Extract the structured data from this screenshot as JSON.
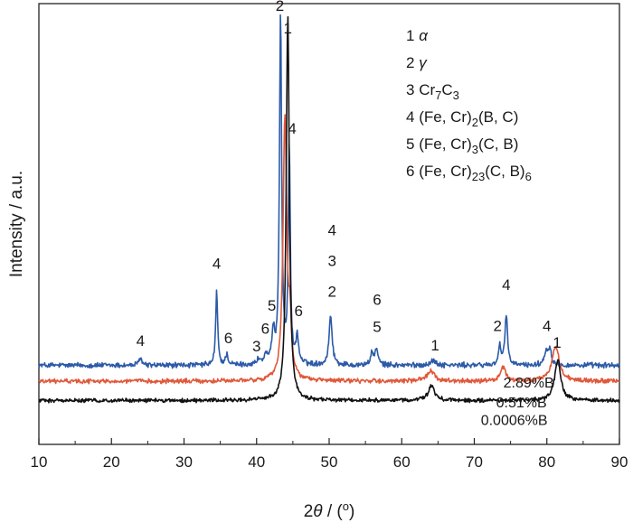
{
  "chart_data": {
    "type": "line",
    "xlabel_prefix": "2",
    "xlabel_symbol": "θ",
    "xlabel_suffix": " / (",
    "xlabel_degree": "o",
    "xlabel_close": ")",
    "ylabel": "Intensity / a.u.",
    "xlim": [
      10,
      90
    ],
    "x_ticks": [
      "10",
      "20",
      "30",
      "40",
      "50",
      "60",
      "70",
      "80",
      "90"
    ],
    "y_ticks_shown": false,
    "grid": false,
    "series": [
      {
        "name": "2.89%B",
        "color": "#2c5aa8",
        "baseline": 0.18,
        "noise": 0.025,
        "peaks": [
          {
            "x": 24.0,
            "h": 0.09,
            "w": 0.22
          },
          {
            "x": 34.5,
            "h": 0.85,
            "w": 0.16
          },
          {
            "x": 35.9,
            "h": 0.12,
            "w": 0.2
          },
          {
            "x": 40.3,
            "h": 0.06,
            "w": 0.25
          },
          {
            "x": 41.3,
            "h": 0.1,
            "w": 0.25
          },
          {
            "x": 42.3,
            "h": 0.34,
            "w": 0.22
          },
          {
            "x": 43.3,
            "h": 4.0,
            "w": 0.18
          },
          {
            "x": 44.5,
            "h": 2.48,
            "w": 0.16
          },
          {
            "x": 45.6,
            "h": 0.3,
            "w": 0.22
          },
          {
            "x": 50.2,
            "h": 0.57,
            "w": 0.25
          },
          {
            "x": 55.9,
            "h": 0.12,
            "w": 0.25
          },
          {
            "x": 56.5,
            "h": 0.18,
            "w": 0.25
          },
          {
            "x": 64.3,
            "h": 0.05,
            "w": 0.5
          },
          {
            "x": 73.5,
            "h": 0.22,
            "w": 0.2
          },
          {
            "x": 74.4,
            "h": 0.55,
            "w": 0.22
          },
          {
            "x": 79.9,
            "h": 0.15,
            "w": 0.3
          },
          {
            "x": 80.4,
            "h": 0.18,
            "w": 0.25
          }
        ]
      },
      {
        "name": "0.51%B",
        "color": "#e0583a",
        "baseline": 0.0,
        "noise": 0.02,
        "peaks": [
          {
            "x": 43.9,
            "h": 3.0,
            "w": 0.3
          },
          {
            "x": 44.6,
            "h": 0.55,
            "w": 0.25
          },
          {
            "x": 64.0,
            "h": 0.12,
            "w": 0.6
          },
          {
            "x": 74.0,
            "h": 0.16,
            "w": 0.4
          },
          {
            "x": 81.2,
            "h": 0.4,
            "w": 0.6
          }
        ]
      },
      {
        "name": "0.0006%B",
        "color": "#111111",
        "baseline": -0.22,
        "noise": 0.018,
        "peaks": [
          {
            "x": 44.3,
            "h": 4.4,
            "w": 0.25
          },
          {
            "x": 64.1,
            "h": 0.17,
            "w": 0.5
          },
          {
            "x": 81.5,
            "h": 0.46,
            "w": 0.5
          }
        ]
      }
    ],
    "peak_labels": [
      {
        "text": "2",
        "x": 43.2,
        "y": 4.22
      },
      {
        "text": "1",
        "x": 44.3,
        "y": 3.96
      },
      {
        "text": "4",
        "x": 44.9,
        "y": 2.82
      },
      {
        "text": "4",
        "x": 34.5,
        "y": 1.28
      },
      {
        "text": "6",
        "x": 36.1,
        "y": 0.43
      },
      {
        "text": "3",
        "x": 40.0,
        "y": 0.34
      },
      {
        "text": "6",
        "x": 41.2,
        "y": 0.54
      },
      {
        "text": "5",
        "x": 42.1,
        "y": 0.8
      },
      {
        "text": "6",
        "x": 45.8,
        "y": 0.74
      },
      {
        "text": "4",
        "x": 50.4,
        "y": 1.66
      },
      {
        "text": "3",
        "x": 50.4,
        "y": 1.31
      },
      {
        "text": "2",
        "x": 50.4,
        "y": 0.96
      },
      {
        "text": "6",
        "x": 56.6,
        "y": 0.87
      },
      {
        "text": "5",
        "x": 56.6,
        "y": 0.56
      },
      {
        "text": "1",
        "x": 64.6,
        "y": 0.35
      },
      {
        "text": "4",
        "x": 24.0,
        "y": 0.4
      },
      {
        "text": "4",
        "x": 74.4,
        "y": 1.04
      },
      {
        "text": "2",
        "x": 73.2,
        "y": 0.57
      },
      {
        "text": "4",
        "x": 80.0,
        "y": 0.57
      },
      {
        "text": "1",
        "x": 81.4,
        "y": 0.38
      }
    ],
    "curve_labels": [
      {
        "text": "2.89%B",
        "x": 77.5,
        "y": -0.07
      },
      {
        "text": "0.51%B",
        "x": 76.5,
        "y": -0.3
      },
      {
        "text": "0.0006%B",
        "x": 75.5,
        "y": -0.5
      }
    ],
    "phase_legend": [
      {
        "num": "1",
        "parts": [
          {
            "t": "α",
            "i": true
          }
        ]
      },
      {
        "num": "2",
        "parts": [
          {
            "t": "γ",
            "i": true
          }
        ]
      },
      {
        "num": "3",
        "parts": [
          {
            "t": "Cr"
          },
          {
            "t": "7",
            "sub": true
          },
          {
            "t": "C"
          },
          {
            "t": "3",
            "sub": true
          }
        ]
      },
      {
        "num": "4",
        "parts": [
          {
            "t": "(Fe, Cr)"
          },
          {
            "t": "2",
            "sub": true
          },
          {
            "t": "(B, C)"
          }
        ]
      },
      {
        "num": "5",
        "parts": [
          {
            "t": "(Fe, Cr)"
          },
          {
            "t": "3",
            "sub": true
          },
          {
            "t": "(C, B)"
          }
        ]
      },
      {
        "num": "6",
        "parts": [
          {
            "t": "(Fe, Cr)"
          },
          {
            "t": "23",
            "sub": true
          },
          {
            "t": "(C, B)"
          },
          {
            "t": "6",
            "sub": true
          }
        ]
      }
    ],
    "ylim": [
      -0.72,
      4.3
    ]
  }
}
